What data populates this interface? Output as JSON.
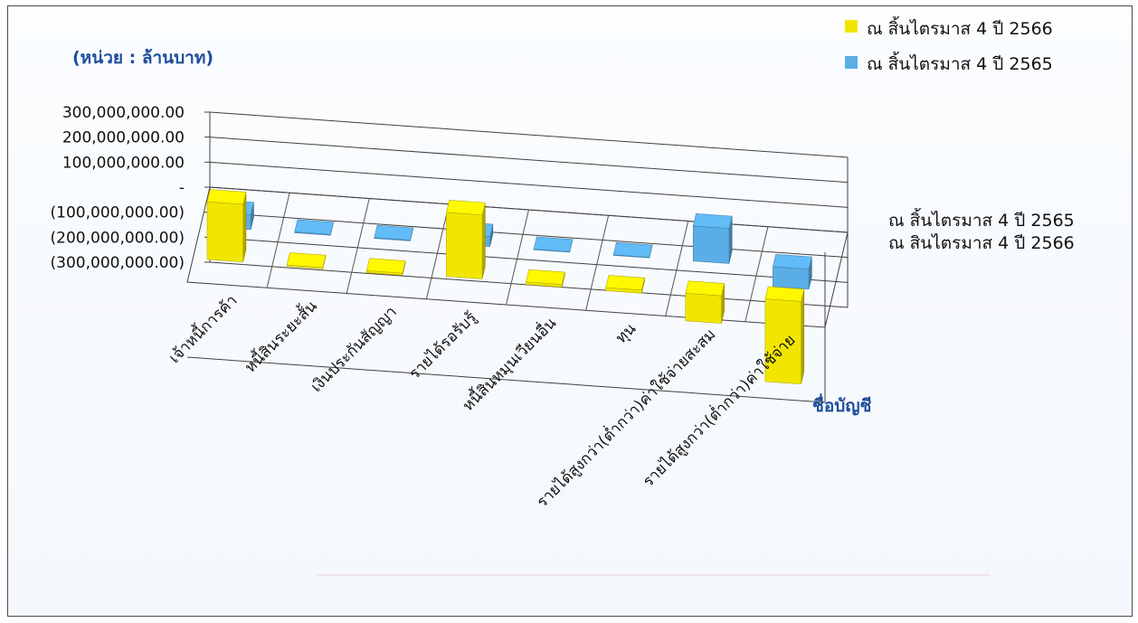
{
  "chart_data": {
    "type": "bar",
    "unit_label": "(หน่วย : ล้านบาท)",
    "xlabel": "ชื่อบัญชี",
    "ylabel": "",
    "yticks": [
      "300,000,000.00",
      "200,000,000.00",
      "100,000,000.00",
      "-",
      "(100,000,000.00)",
      "(200,000,000.00)",
      "(300,000,000.00)"
    ],
    "ylim": [
      -300000000,
      300000000
    ],
    "categories": [
      "เจ้าหนี้การค้า",
      "หนี้สินระยะสั้น",
      "เงินประกันสัญญา",
      "รายได้รอรับรู้",
      "หนี้สินหมุนเวียนอื่น",
      "ทุน",
      "รายได้สูงกว่า(ต่ำกว่า)ค่าใช้จ่ายสะสม",
      "รายได้สูงกว่า(ต่ำกว่า)ค่าใช้จ่าย"
    ],
    "series": [
      {
        "name": "ณ สิ้นไตรมาส 4 ปี 2566",
        "color": "#f2e600",
        "values": [
          230000000,
          -5000000,
          -8000000,
          255000000,
          -10000000,
          -12000000,
          -110000000,
          -330000000
        ]
      },
      {
        "name": "ณ สิ้นไตรมาส 4 ปี 2565",
        "color": "#5aaee6",
        "values": [
          60000000,
          3000000,
          3000000,
          40000000,
          2000000,
          2000000,
          140000000,
          -80000000
        ]
      }
    ],
    "depth_labels": [
      "ณ สิ้นไตรมาส 4 ปี 2565",
      "ณ สินไตรมาส 4 ปี 2566"
    ],
    "legend_position": "top-right",
    "grid": true
  }
}
